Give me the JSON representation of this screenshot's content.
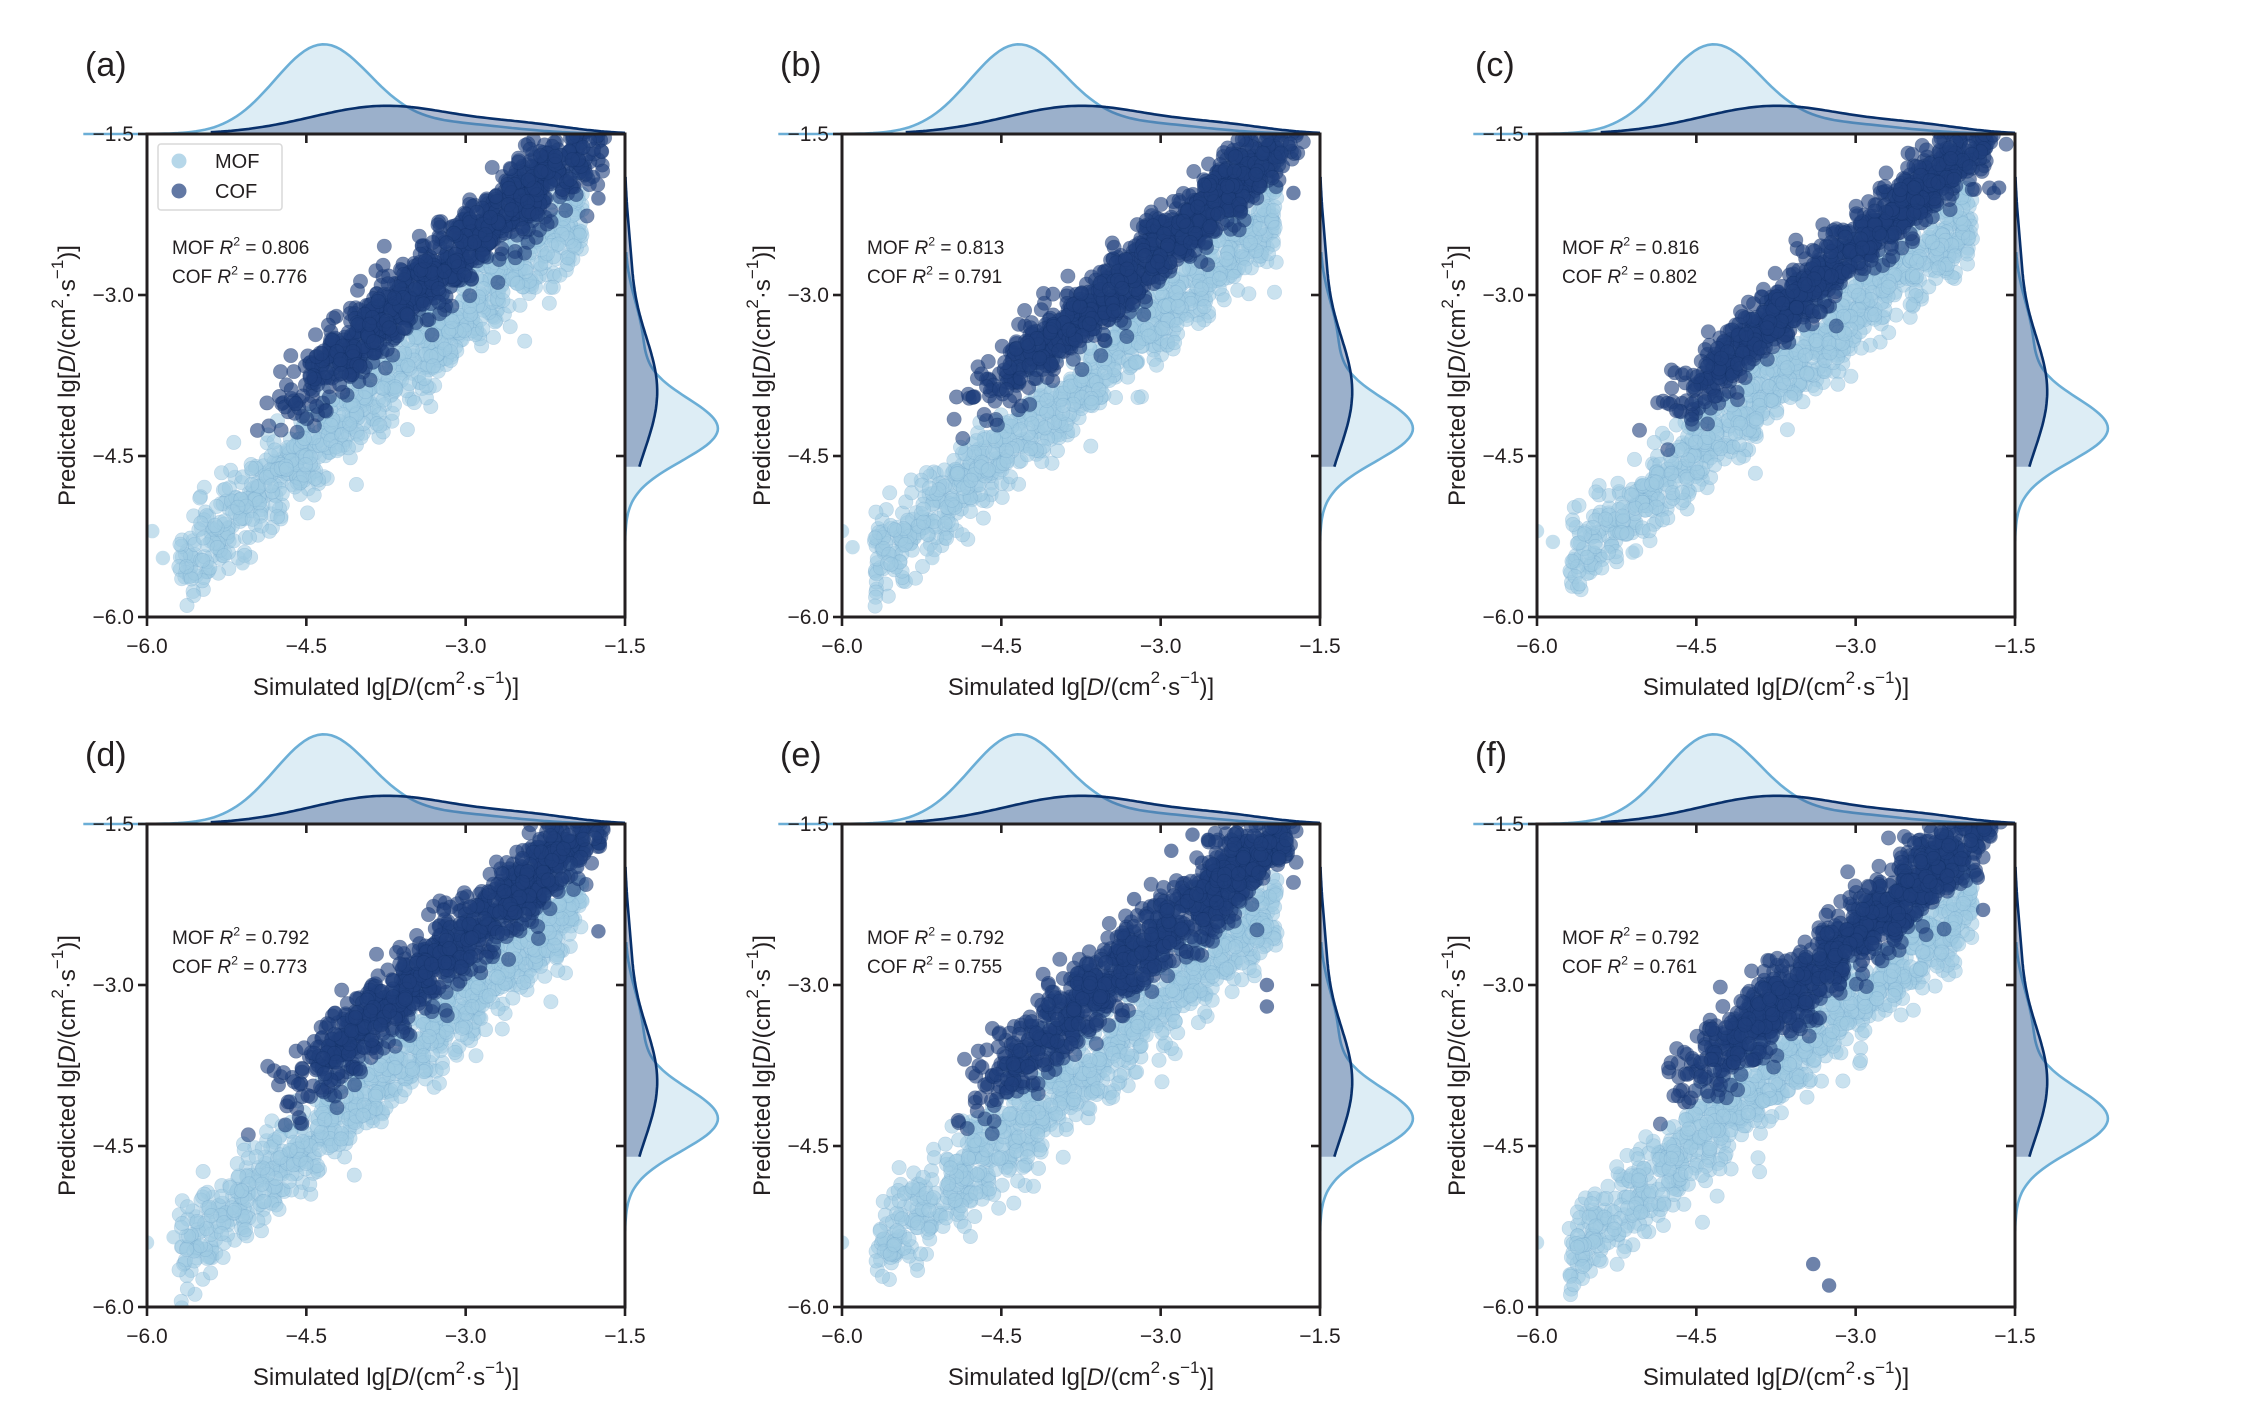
{
  "chart_data": {
    "type": "scatter",
    "layout": "2x3 joint plots (scatter with marginal KDE)",
    "shared": {
      "xlabel_prefix": "Simulated",
      "ylabel_prefix": "Predicted",
      "unit_label": "lg[D/(cm2·s−1)]",
      "xlim": [
        -6.0,
        -1.5
      ],
      "ylim": [
        -6.0,
        -1.5
      ],
      "xticks": [
        "−6.0",
        "−4.5",
        "−3.0",
        "−1.5"
      ],
      "yticks": [
        "−6.0",
        "−4.5",
        "−3.0",
        "−1.5"
      ],
      "xtick_values": [
        -6.0,
        -4.5,
        -3.0,
        -1.5
      ],
      "ytick_values": [
        -6.0,
        -4.5,
        -3.0,
        -1.5
      ],
      "grid": false,
      "legend": {
        "placement": "top-left",
        "panel": "a",
        "entries": [
          "MOF",
          "COF"
        ]
      },
      "series_colors": {
        "MOF": "#9ecae1",
        "COF": "#1f3f7d",
        "MOF_kde_line": "#6baed6",
        "COF_kde_line": "#08306b"
      },
      "marginal_x_kde": {
        "MOF": {
          "peak": -4.35,
          "spread": 0.45,
          "relative_height": 1.0
        },
        "COF": {
          "peak": -3.75,
          "spread": 0.7,
          "relative_height": 0.32,
          "tail_to": -1.8
        }
      },
      "marginal_y_kde": {
        "MOF": {
          "peak": -4.25,
          "spread": 0.3,
          "relative_height": 1.0
        },
        "COF": {
          "peak": -3.9,
          "spread": 0.55,
          "relative_height": 0.35
        }
      }
    },
    "panels": [
      {
        "label": "(a)",
        "mof_r2_label": "MOF R",
        "mof_r2_value": "= 0.806",
        "cof_r2_label": "COF R",
        "cof_r2_value": "= 0.776",
        "mof_r2": 0.806,
        "cof_r2": 0.776,
        "show_legend": true,
        "outliers": [
          [
            -5.95,
            -5.2
          ],
          [
            -5.85,
            -5.45
          ],
          [
            -5.1,
            -5.5
          ],
          [
            -1.8,
            -1.9
          ],
          [
            -1.75,
            -2.1
          ]
        ]
      },
      {
        "label": "(b)",
        "mof_r2_label": "MOF R",
        "mof_r2_value": "= 0.813",
        "cof_r2_label": "COF R",
        "cof_r2_value": "= 0.791",
        "mof_r2": 0.813,
        "cof_r2": 0.791,
        "show_legend": false,
        "outliers": [
          [
            -6.0,
            -5.2
          ],
          [
            -5.9,
            -5.35
          ],
          [
            -5.15,
            -5.45
          ],
          [
            -1.85,
            -1.8
          ],
          [
            -1.75,
            -2.05
          ]
        ]
      },
      {
        "label": "(c)",
        "mof_r2_label": "MOF R",
        "mof_r2_value": "= 0.816",
        "cof_r2_label": "COF R",
        "cof_r2_value": "= 0.802",
        "mof_r2": 0.816,
        "cof_r2": 0.802,
        "show_legend": false,
        "outliers": [
          [
            -6.0,
            -5.2
          ],
          [
            -5.85,
            -5.3
          ],
          [
            -5.1,
            -5.4
          ],
          [
            -1.65,
            -2.0
          ],
          [
            -1.7,
            -2.05
          ]
        ]
      },
      {
        "label": "(d)",
        "mof_r2_label": "MOF R",
        "mof_r2_value": "= 0.792",
        "cof_r2_label": "COF R",
        "cof_r2_value": "= 0.773",
        "mof_r2": 0.792,
        "cof_r2": 0.773,
        "show_legend": false,
        "outliers": [
          [
            -6.0,
            -5.4
          ],
          [
            -5.75,
            -5.35
          ],
          [
            -1.95,
            -1.9
          ],
          [
            -1.75,
            -2.5
          ]
        ]
      },
      {
        "label": "(e)",
        "mof_r2_label": "MOF R",
        "mof_r2_value": "= 0.792",
        "cof_r2_label": "COF R",
        "cof_r2_value": "= 0.755",
        "mof_r2": 0.792,
        "cof_r2": 0.755,
        "show_legend": false,
        "outliers": [
          [
            -6.0,
            -5.4
          ],
          [
            -2.7,
            -1.6
          ],
          [
            -2.55,
            -1.65
          ],
          [
            -2.9,
            -1.75
          ],
          [
            -3.25,
            -2.2
          ],
          [
            -2.0,
            -3.0
          ],
          [
            -2.0,
            -3.2
          ]
        ]
      },
      {
        "label": "(f)",
        "mof_r2_label": "MOF R",
        "mof_r2_value": "= 0.792",
        "cof_r2_label": "COF R",
        "cof_r2_value": "= 0.761",
        "mof_r2": 0.792,
        "cof_r2": 0.761,
        "show_legend": false,
        "outliers": [
          [
            -6.0,
            -5.4
          ],
          [
            -3.4,
            -5.6
          ],
          [
            -3.25,
            -5.8
          ],
          [
            -1.8,
            -2.3
          ],
          [
            -1.85,
            -2.0
          ]
        ]
      }
    ]
  }
}
